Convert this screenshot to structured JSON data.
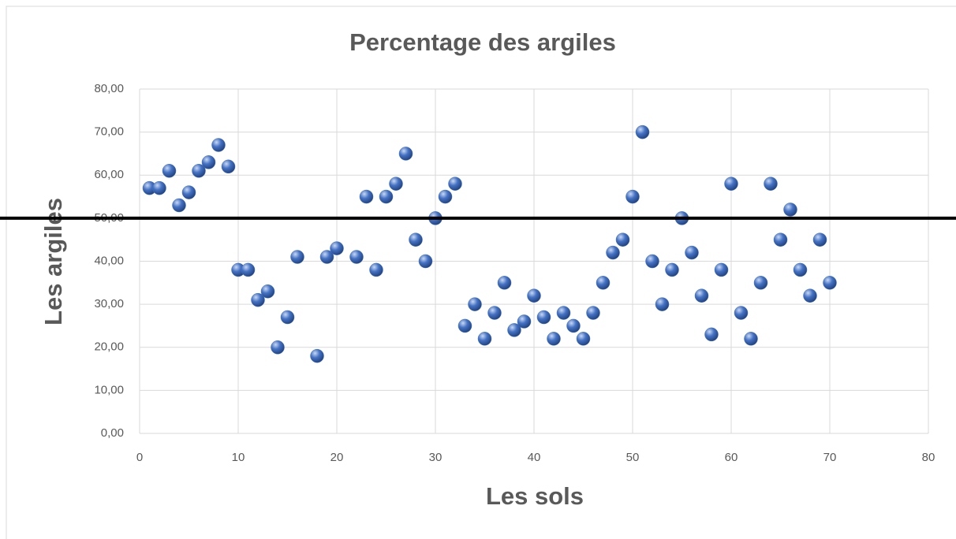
{
  "chart_data": {
    "type": "scatter",
    "title": "Percentage des argiles",
    "x_label": "Les sols",
    "y_label": "Les argiles",
    "series": [
      {
        "color": "#4472c4",
        "x": [
          1,
          2,
          3,
          4,
          5,
          6,
          7,
          8,
          9,
          10,
          11,
          12,
          13,
          14,
          15,
          16,
          18,
          19,
          20,
          22,
          23,
          24,
          25,
          26,
          27,
          28,
          29,
          30,
          31,
          32,
          33,
          34,
          35,
          36,
          37,
          38,
          39,
          40,
          41,
          42,
          43,
          44,
          45,
          46,
          47,
          48,
          49,
          50,
          51,
          52,
          53,
          54,
          55,
          56,
          57,
          58,
          59,
          60,
          61,
          62,
          63,
          64,
          65,
          66,
          67,
          68,
          69,
          70
        ],
        "values": [
          57,
          57,
          61,
          53,
          56,
          61,
          63,
          67,
          62,
          38,
          38,
          31,
          33,
          20,
          27,
          41,
          18,
          41,
          43,
          41,
          55,
          38,
          55,
          58,
          65,
          45,
          40,
          50,
          55,
          58,
          25,
          30,
          22,
          28,
          35,
          24,
          26,
          32,
          27,
          22,
          28,
          25,
          22,
          28,
          35,
          42,
          45,
          55,
          70,
          40,
          30,
          38,
          50,
          42,
          32,
          23,
          38,
          58,
          28,
          22,
          35,
          58,
          45,
          52,
          38,
          32,
          45,
          35
        ]
      }
    ],
    "hline": 50,
    "xlim": [
      0,
      80
    ],
    "xticks": [
      0,
      10,
      20,
      30,
      40,
      50,
      60,
      70,
      80
    ],
    "ylim": [
      0,
      80
    ],
    "yticks": [
      {
        "value": 0,
        "label": "0,00"
      },
      {
        "value": 10,
        "label": "10,00"
      },
      {
        "value": 20,
        "label": "20,00"
      },
      {
        "value": 30,
        "label": "30,00"
      },
      {
        "value": 40,
        "label": "40,00"
      },
      {
        "value": 50,
        "label": "50,00"
      },
      {
        "value": 60,
        "label": "60,00"
      },
      {
        "value": 70,
        "label": "70,00"
      },
      {
        "value": 80,
        "label": "80,00"
      }
    ],
    "grid": true
  }
}
